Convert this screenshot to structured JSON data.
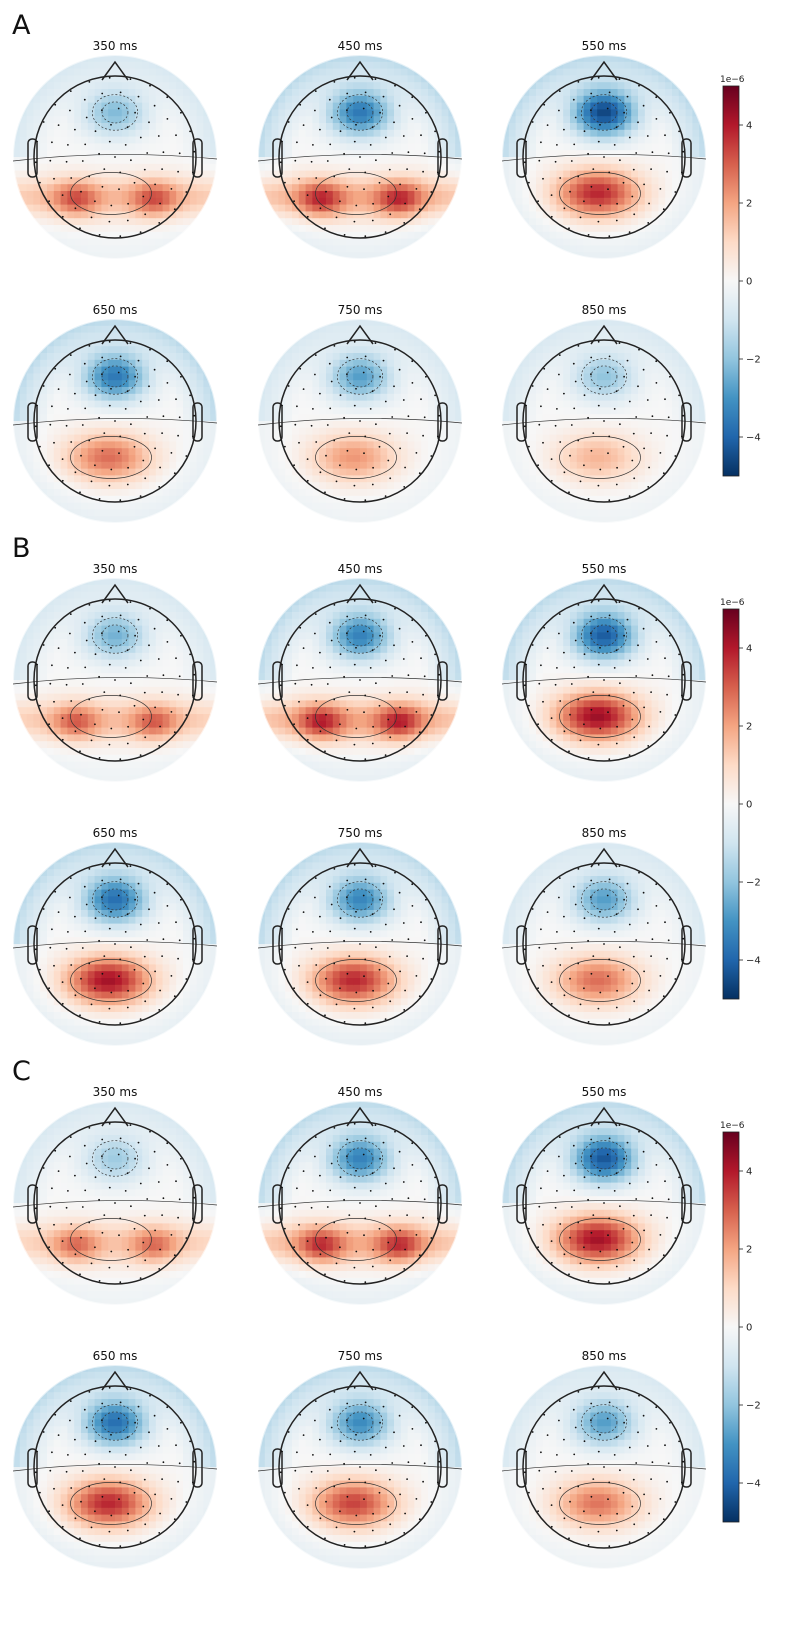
{
  "figure": {
    "colormap": [
      "#053061",
      "#2166ac",
      "#4393c3",
      "#92c5de",
      "#d1e5f0",
      "#f7f7f7",
      "#fddbc7",
      "#f4a582",
      "#d6604d",
      "#b2182b",
      "#67001f"
    ],
    "colorbar": {
      "scale_label": "1e−6",
      "min": -5,
      "max": 5,
      "ticks": [
        4,
        2,
        0,
        -2,
        -4
      ],
      "tick_labels": [
        "4",
        "2",
        "0",
        "−2",
        "−4"
      ]
    },
    "panels": [
      {
        "letter": "A",
        "maps": [
          {
            "label": "350 ms",
            "frontal": -2.2,
            "posterior": 3.0,
            "lateral": true
          },
          {
            "label": "450 ms",
            "frontal": -3.6,
            "posterior": 3.5,
            "lateral": true
          },
          {
            "label": "550 ms",
            "frontal": -4.6,
            "posterior": 3.8,
            "lateral": false
          },
          {
            "label": "650 ms",
            "frontal": -3.6,
            "posterior": 2.8,
            "lateral": false
          },
          {
            "label": "750 ms",
            "frontal": -2.8,
            "posterior": 2.2,
            "lateral": false
          },
          {
            "label": "850 ms",
            "frontal": -2.0,
            "posterior": 1.7,
            "lateral": false
          }
        ]
      },
      {
        "letter": "B",
        "maps": [
          {
            "label": "350 ms",
            "frontal": -2.4,
            "posterior": 2.8,
            "lateral": true
          },
          {
            "label": "450 ms",
            "frontal": -3.4,
            "posterior": 3.6,
            "lateral": true
          },
          {
            "label": "550 ms",
            "frontal": -4.2,
            "posterior": 4.3,
            "lateral": false
          },
          {
            "label": "650 ms",
            "frontal": -3.8,
            "posterior": 4.2,
            "lateral": false
          },
          {
            "label": "750 ms",
            "frontal": -3.3,
            "posterior": 3.8,
            "lateral": false
          },
          {
            "label": "850 ms",
            "frontal": -2.8,
            "posterior": 2.8,
            "lateral": false
          }
        ]
      },
      {
        "letter": "C",
        "maps": [
          {
            "label": "350 ms",
            "frontal": -1.8,
            "posterior": 2.6,
            "lateral": true
          },
          {
            "label": "450 ms",
            "frontal": -3.4,
            "posterior": 3.4,
            "lateral": true
          },
          {
            "label": "550 ms",
            "frontal": -4.3,
            "posterior": 4.2,
            "lateral": false
          },
          {
            "label": "650 ms",
            "frontal": -3.8,
            "posterior": 3.8,
            "lateral": false
          },
          {
            "label": "750 ms",
            "frontal": -3.2,
            "posterior": 3.4,
            "lateral": false
          },
          {
            "label": "850 ms",
            "frontal": -2.8,
            "posterior": 2.7,
            "lateral": false
          }
        ]
      }
    ]
  }
}
